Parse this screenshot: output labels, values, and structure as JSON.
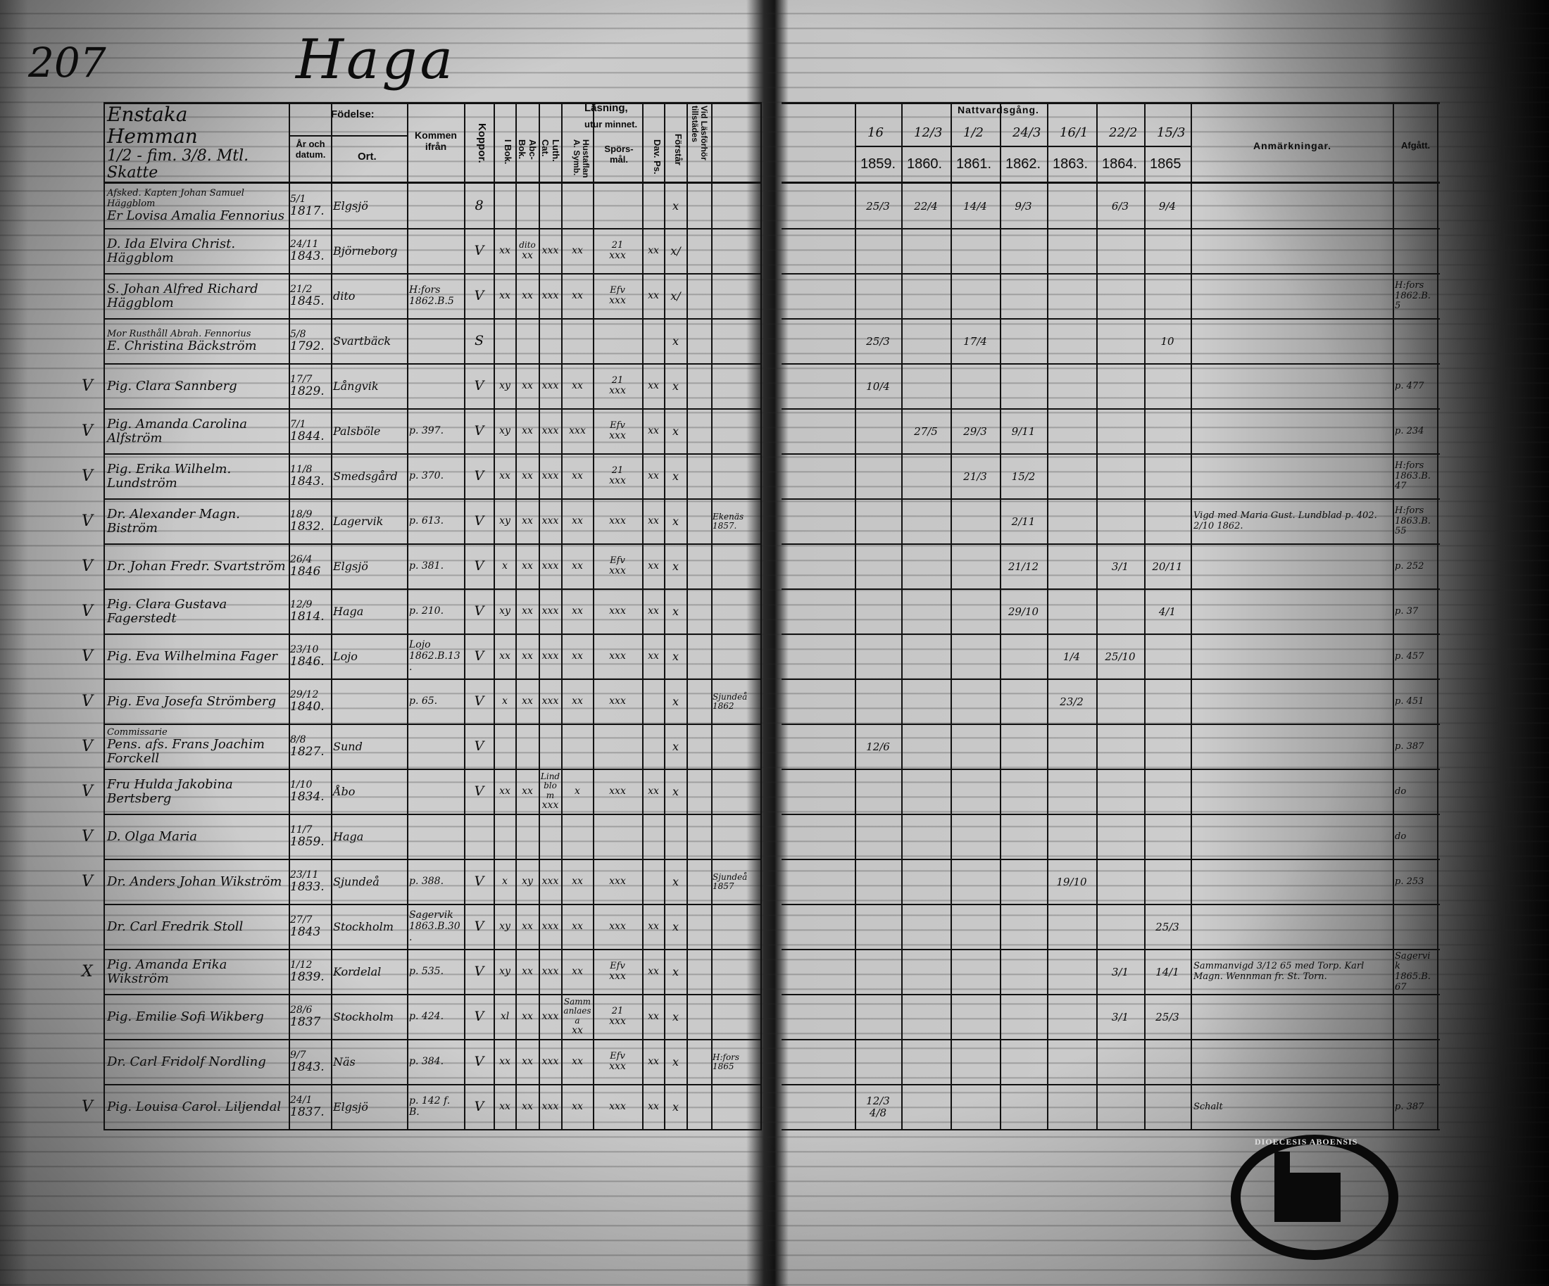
{
  "page_number": "207",
  "parish_title": "Haga",
  "left_header": {
    "farm_line1": "Enstaka Hemman",
    "farm_line2": "1/2 - fim. 3/8. Mtl. Skatte",
    "fodelse": "Födelse:",
    "ar_och_datum": "År och datum.",
    "ort": "Ort.",
    "kommen_ifran": "Kommen ifrån",
    "koppor": "Koppor.",
    "lasning": "Läsning,",
    "utur_minnet": "utur minnet.",
    "i_bok": "I Bok.",
    "abc_bok": "Abc-Bok.",
    "luth_cat": "Luth. Cat.",
    "husfl_symb": "Hustaflan A. Symb.",
    "sporsmal": "Spörs-mål.",
    "dav_ps": "Dav. Ps.",
    "forstar": "Förstår",
    "vid_lasforhor": "Vid Läsförhör tillstädes"
  },
  "right_header": {
    "nattvardsgang": "Nattvardsgång.",
    "dates": [
      "16",
      "12/3",
      "1/2",
      "24/3",
      "16/1",
      "22/2",
      "15/3"
    ],
    "years": [
      "1859.",
      "1860.",
      "1861.",
      "1862.",
      "1863.",
      "1864.",
      "1865"
    ],
    "anmarkningar": "Anmärkningar.",
    "afgatt": "Afgått."
  },
  "rows": [
    {
      "note": "Afsked. Kapten Johan Samuel Häggblom",
      "name": "Er Lovisa Amalia Fennorius",
      "day": "5/1",
      "year": "1817.",
      "ort": "Elgsjö",
      "kommen": "",
      "koppor": "8",
      "ibok": "",
      "abc": "",
      "luth": "",
      "husf": "",
      "spors": "",
      "spors_note": "",
      "dav": "",
      "forstar": "x",
      "natt": [
        "25/3",
        "22/4",
        "14/4",
        "9/3",
        "",
        "6/3",
        "9/4"
      ],
      "anm": "",
      "afgatt": ""
    },
    {
      "note": "",
      "name": "D. Ida Elvira Christ. Häggblom",
      "day": "24/11",
      "year": "1843.",
      "ort": "Björneborg",
      "kommen": "",
      "koppor": "V",
      "ibok": "xx",
      "abc": "xx",
      "abc_note": "dito",
      "luth": "xxx",
      "husf": "xx",
      "spors": "xxx",
      "spors_note": "21",
      "dav": "xx",
      "forstar": "x/",
      "natt": [
        "",
        "",
        "",
        "",
        "",
        "",
        ""
      ],
      "anm": "",
      "afgatt": ""
    },
    {
      "note": "",
      "name": "S. Johan Alfred Richard Häggblom",
      "day": "21/2",
      "year": "1845.",
      "ort": "dito",
      "kommen": "H:fors 1862.B.5",
      "koppor": "V",
      "ibok": "xx",
      "abc": "xx",
      "luth": "xxx",
      "husf": "xx",
      "spors": "xxx",
      "spors_note": "Efv",
      "dav": "xx",
      "forstar": "x/",
      "natt": [
        "",
        "",
        "",
        "",
        "",
        "",
        ""
      ],
      "anm": "",
      "afgatt": "H:fors 1862.B.5"
    },
    {
      "note": "Mor Rusthåll Abrah. Fennorius",
      "name": "E. Christina Bäckström",
      "day": "5/8",
      "year": "1792.",
      "ort": "Svartbäck",
      "kommen": "",
      "koppor": "S",
      "ibok": "",
      "abc": "",
      "luth": "",
      "husf": "",
      "spors": "",
      "spors_note": "",
      "dav": "",
      "forstar": "x",
      "natt": [
        "25/3",
        "",
        "17/4",
        "",
        "",
        "",
        "10"
      ],
      "anm": "",
      "afgatt": ""
    },
    {
      "mark": "V",
      "name": "Pig. Clara Sannberg",
      "day": "17/7",
      "year": "1829.",
      "ort": "Långvik",
      "kommen": "",
      "koppor": "V",
      "ibok": "xy",
      "abc": "xx",
      "luth": "xxx",
      "husf": "xx",
      "spors": "xxx",
      "spors_note": "21",
      "dav": "xx",
      "forstar": "x",
      "natt": [
        "10/4",
        "",
        "",
        "",
        "",
        "",
        ""
      ],
      "anm": "",
      "afgatt": "p. 477"
    },
    {
      "mark": "V",
      "name": "Pig. Amanda Carolina Alfström",
      "day": "7/1",
      "year": "1844.",
      "ort": "Palsböle",
      "kommen": "p. 397.",
      "koppor": "V",
      "ibok": "xy",
      "abc": "xx",
      "luth": "xxx",
      "husf": "xxx",
      "spors": "xxx",
      "spors_note": "Efv",
      "dav": "xx",
      "forstar": "x",
      "natt": [
        "",
        "27/5",
        "29/3",
        "9/11",
        "",
        "",
        ""
      ],
      "anm": "",
      "afgatt": "p. 234"
    },
    {
      "mark": "V",
      "name": "Pig. Erika Wilhelm. Lundström",
      "day": "11/8",
      "year": "1843.",
      "ort": "Smedsgård",
      "kommen": "p. 370.",
      "koppor": "V",
      "ibok": "xx",
      "abc": "xx",
      "luth": "xxx",
      "husf": "xx",
      "spors": "xxx",
      "spors_note": "21",
      "dav": "xx",
      "forstar": "x",
      "natt": [
        "",
        "",
        "21/3",
        "15/2",
        "",
        "",
        ""
      ],
      "anm": "",
      "afgatt": "H:fors 1863.B.47"
    },
    {
      "mark": "V",
      "name": "Dr. Alexander Magn. Biström",
      "day": "18/9",
      "year": "1832.",
      "ort": "Lagervik",
      "kommen": "p. 613.",
      "koppor": "V",
      "ibok": "xy",
      "abc": "xx",
      "luth": "xxx",
      "husf": "xx",
      "spors": "xxx",
      "spors_note": "",
      "dav": "xx",
      "forstar": "x",
      "extra": "Ekenäs 1857.",
      "natt": [
        "",
        "",
        "",
        "2/11",
        "",
        "",
        ""
      ],
      "anm": "Vigd med Maria Gust. Lundblad p. 402. 2/10 1862.",
      "afgatt": "H:fors 1863.B.55"
    },
    {
      "mark": "V",
      "name": "Dr. Johan Fredr. Svartström",
      "day": "26/4",
      "year": "1846",
      "ort": "Elgsjö",
      "kommen": "p. 381.",
      "koppor": "V",
      "ibok": "x",
      "abc": "xx",
      "luth": "xxx",
      "husf": "xx",
      "spors": "xxx",
      "spors_note": "Efv",
      "dav": "xx",
      "forstar": "x",
      "natt": [
        "",
        "",
        "",
        "21/12",
        "",
        "3/1",
        "20/11"
      ],
      "anm": "",
      "afgatt": "p. 252"
    },
    {
      "mark": "V",
      "name": "Pig. Clara Gustava Fagerstedt",
      "day": "12/9",
      "year": "1814.",
      "ort": "Haga",
      "kommen": "p. 210.",
      "koppor": "V",
      "ibok": "xy",
      "abc": "xx",
      "luth": "xxx",
      "husf": "xx",
      "spors": "xxx",
      "spors_note": "",
      "dav": "xx",
      "forstar": "x",
      "natt": [
        "",
        "",
        "",
        "29/10",
        "",
        "",
        "4/1"
      ],
      "anm": "",
      "afgatt": "p. 37"
    },
    {
      "mark": "V",
      "name": "Pig. Eva Wilhelmina Fager",
      "day": "23/10",
      "year": "1846.",
      "ort": "Lojo",
      "kommen": "Lojo 1862.B.13.",
      "koppor": "V",
      "ibok": "xx",
      "abc": "xx",
      "luth": "xxx",
      "husf": "xx",
      "spors": "xxx",
      "spors_note": "",
      "dav": "xx",
      "forstar": "x",
      "natt": [
        "",
        "",
        "",
        "",
        "1/4",
        "25/10",
        ""
      ],
      "anm": "",
      "afgatt": "p. 457"
    },
    {
      "mark": "V",
      "name": "Pig. Eva Josefa Strömberg",
      "day": "29/12",
      "year": "1840.",
      "ort": "",
      "kommen": "p. 65.",
      "koppor": "V",
      "ibok": "x",
      "abc": "xx",
      "luth": "xxx",
      "husf": "xx",
      "spors": "xxx",
      "spors_note": "",
      "dav": "",
      "forstar": "x",
      "extra": "Sjundeå 1862",
      "natt": [
        "",
        "",
        "",
        "",
        "23/2",
        "",
        ""
      ],
      "anm": "",
      "afgatt": "p. 451"
    },
    {
      "mark": "V",
      "note": "Commissarie",
      "name": "Pens. afs. Frans Joachim Forckell",
      "day": "8/8",
      "year": "1827.",
      "ort": "Sund",
      "kommen": "",
      "koppor": "V",
      "ibok": "",
      "abc": "",
      "luth": "",
      "husf": "",
      "spors": "",
      "spors_note": "",
      "dav": "",
      "forstar": "x",
      "natt": [
        "12/6",
        "",
        "",
        "",
        "",
        "",
        ""
      ],
      "anm": "",
      "afgatt": "p. 387"
    },
    {
      "mark": "V",
      "name": "Fru Hulda Jakobina Bertsberg",
      "day": "1/10",
      "year": "1834.",
      "ort": "Åbo",
      "kommen": "",
      "koppor": "V",
      "ibok": "xx",
      "abc": "xx",
      "luth": "xxx",
      "luth_note": "Lindblom",
      "husf": "x",
      "spors": "xxx",
      "spors_note": "",
      "dav": "xx",
      "forstar": "x",
      "natt": [
        "",
        "",
        "",
        "",
        "",
        "",
        ""
      ],
      "anm": "",
      "afgatt": "do"
    },
    {
      "mark": "V",
      "name": "D. Olga Maria",
      "day": "11/7",
      "year": "1859.",
      "ort": "Haga",
      "kommen": "",
      "koppor": "",
      "ibok": "",
      "abc": "",
      "luth": "",
      "husf": "",
      "spors": "",
      "spors_note": "",
      "dav": "",
      "forstar": "",
      "natt": [
        "",
        "",
        "",
        "",
        "",
        "",
        ""
      ],
      "anm": "",
      "afgatt": "do"
    },
    {
      "mark": "V",
      "name": "Dr. Anders Johan Wikström",
      "day": "23/11",
      "year": "1833.",
      "ort": "Sjundeå",
      "kommen": "p. 388.",
      "koppor": "V",
      "ibok": "x",
      "abc": "xy",
      "luth": "xxx",
      "husf": "xx",
      "spors": "xxx",
      "spors_note": "",
      "dav": "",
      "forstar": "x",
      "extra": "Sjundeå 1857",
      "natt": [
        "",
        "",
        "",
        "",
        "19/10",
        "",
        ""
      ],
      "anm": "",
      "afgatt": "p. 253"
    },
    {
      "mark": "",
      "name": "Dr. Carl Fredrik Stoll",
      "day": "27/7",
      "year": "1843",
      "ort": "Stockholm",
      "kommen": "Sagervik 1863.B.30.",
      "koppor": "V",
      "ibok": "xy",
      "abc": "xx",
      "luth": "xxx",
      "husf": "xx",
      "spors": "xxx",
      "spors_note": "",
      "dav": "xx",
      "forstar": "x",
      "natt": [
        "",
        "",
        "",
        "",
        "",
        "",
        "25/3"
      ],
      "anm": "",
      "afgatt": ""
    },
    {
      "mark": "X",
      "name": "Pig. Amanda Erika Wikström",
      "day": "1/12",
      "year": "1839.",
      "ort": "Kordelal",
      "kommen": "p. 535.",
      "koppor": "V",
      "ibok": "xy",
      "abc": "xx",
      "luth": "xxx",
      "husf": "xx",
      "spors": "xxx",
      "spors_note": "Efv",
      "dav": "xx",
      "forstar": "x",
      "natt": [
        "",
        "",
        "",
        "",
        "",
        "3/1",
        "14/1"
      ],
      "anm": "Sammanvigd 3/12 65 med Torp. Karl Magn. Wennman fr. St. Torn.",
      "afgatt": "Sagervik 1865.B.67"
    },
    {
      "mark": "",
      "name": "Pig. Emilie Sofi Wikberg",
      "day": "28/6",
      "year": "1837",
      "ort": "Stockholm",
      "kommen": "p. 424.",
      "koppor": "V",
      "ibok": "xl",
      "abc": "xx",
      "luth": "xxx",
      "husf": "xx",
      "spors": "xxx",
      "spors_note": "21",
      "husf_note": "Sammanlaesa",
      "dav": "xx",
      "forstar": "x",
      "natt": [
        "",
        "",
        "",
        "",
        "",
        "3/1",
        "25/3"
      ],
      "anm": "",
      "afgatt": ""
    },
    {
      "mark": "",
      "name": "Dr. Carl Fridolf Nordling",
      "day": "9/7",
      "year": "1843.",
      "ort": "Näs",
      "kommen": "p. 384.",
      "koppor": "V",
      "ibok": "xx",
      "abc": "xx",
      "luth": "xxx",
      "husf": "xx",
      "spors": "xxx",
      "spors_note": "Efv",
      "dav": "xx",
      "forstar": "x",
      "extra": "H:fors 1865",
      "natt": [
        "",
        "",
        "",
        "",
        "",
        "",
        ""
      ],
      "anm": "",
      "afgatt": ""
    },
    {
      "mark": "V",
      "name": "Pig. Louisa Carol. Liljendal",
      "day": "24/1",
      "year": "1837.",
      "ort": "Elgsjö",
      "kommen": "p. 142 f. B.",
      "koppor": "V",
      "ibok": "xx",
      "abc": "xx",
      "luth": "xxx",
      "husf": "xx",
      "spors": "xxx",
      "spors_note": "",
      "dav": "xx",
      "forstar": "x",
      "natt": [
        "12/3 4/8",
        "",
        "",
        "",
        "",
        "",
        ""
      ],
      "anm": "Schalt",
      "afgatt": "p. 387"
    }
  ],
  "stamp": {
    "text": "DIOECESIS ABOENSIS"
  },
  "colors": {
    "ink": "#0c0c0c",
    "paper": "#cbcbcb",
    "edge": "#050505"
  }
}
